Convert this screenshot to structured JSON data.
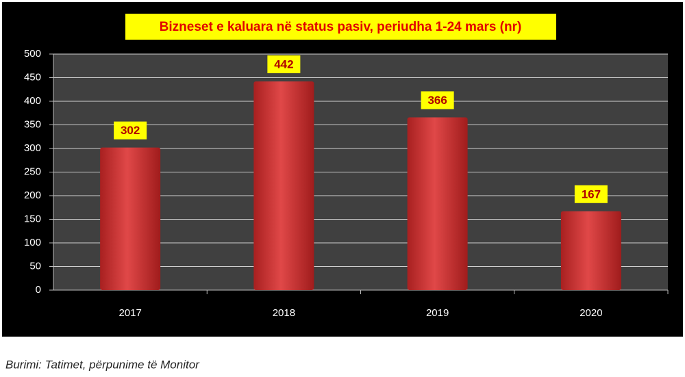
{
  "chart_data": {
    "type": "bar",
    "title": "Bizneset e kaluara në status pasiv, periudha 1-24 mars (nr)",
    "categories": [
      "2017",
      "2018",
      "2019",
      "2020"
    ],
    "values": [
      302,
      442,
      366,
      167
    ],
    "color": "#d94040",
    "ylim": [
      0,
      500
    ],
    "yticks": [
      0,
      50,
      100,
      150,
      200,
      250,
      300,
      350,
      400,
      450,
      500
    ],
    "grid": true,
    "source": "Burimi: Tatimet, përpunime të Monitor"
  }
}
